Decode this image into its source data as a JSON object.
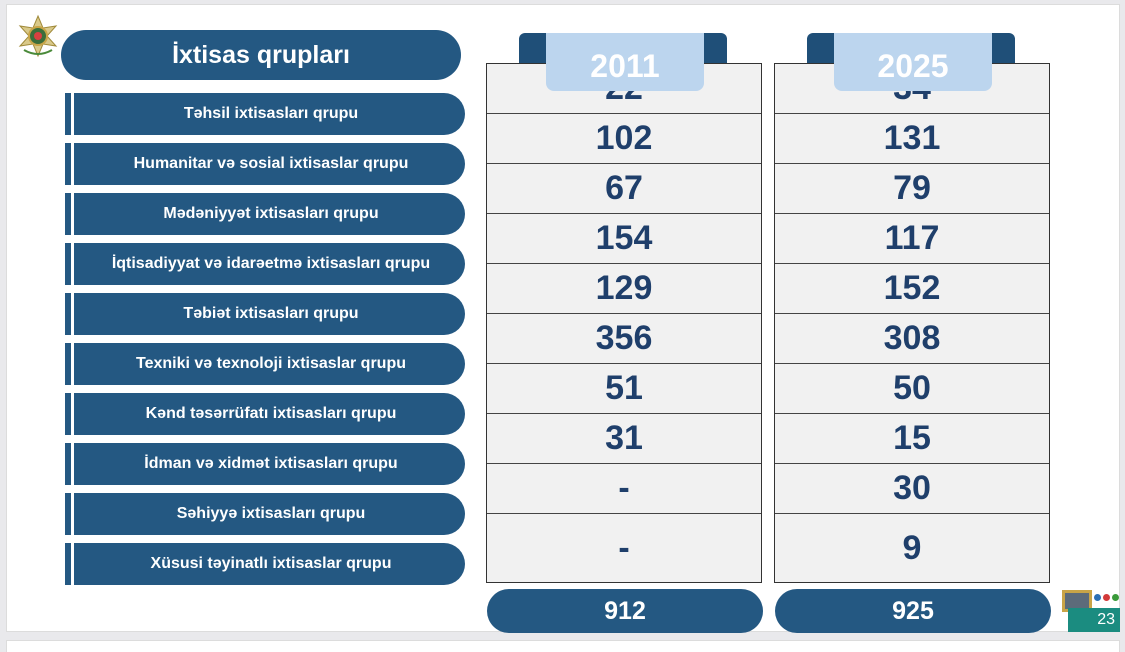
{
  "title": "İxtisas qrupları",
  "groups": [
    "Təhsil ixtisasları qrupu",
    "Humanitar və sosial ixtisaslar qrupu",
    "Mədəniyyət ixtisasları qrupu",
    "İqtisadiyyat və idarəetmə ixtisasları qrupu",
    "Təbiət ixtisasları qrupu",
    "Texniki və texnoloji ixtisaslar qrupu",
    "Kənd təsərrüfatı ixtisasları qrupu",
    "İdman və xidmət ixtisasları qrupu",
    "Səhiyyə ixtisasları qrupu",
    "Xüsusi təyinatlı ixtisaslar qrupu"
  ],
  "columns": [
    {
      "year": "2011",
      "values": [
        "22",
        "102",
        "67",
        "154",
        "129",
        "356",
        "51",
        "31",
        "-",
        "-"
      ],
      "total": "912"
    },
    {
      "year": "2025",
      "values": [
        "34",
        "131",
        "79",
        "117",
        "152",
        "308",
        "50",
        "15",
        "30",
        "9"
      ],
      "total": "925"
    }
  ],
  "page_number": "23",
  "colors": {
    "primary": "#245882",
    "tab": "#bcd5ee",
    "value_text": "#1f3f6b",
    "badge": "#1b8c80"
  },
  "icons": {
    "emblem": "state-emblem-icon",
    "page_badge": "presentation-screen-icon"
  }
}
